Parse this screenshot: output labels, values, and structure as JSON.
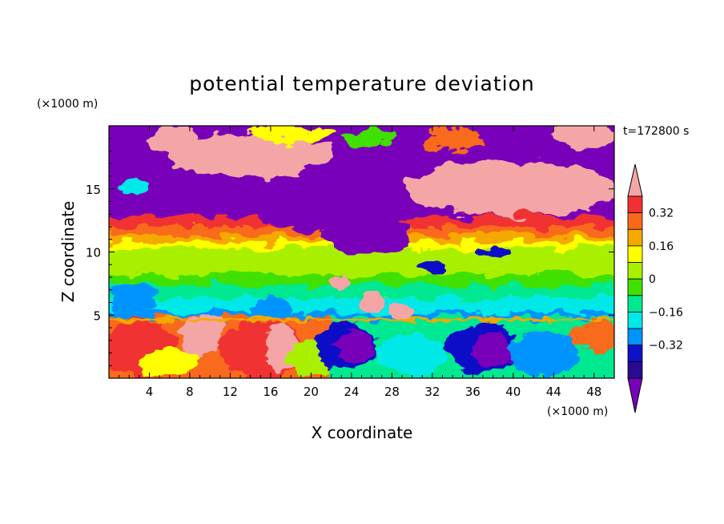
{
  "chart_data": {
    "type": "heatmap",
    "title": "potential temperature deviation",
    "xlabel": "X coordinate",
    "ylabel": "Z coordinate",
    "x_unit": "(×1000 m)",
    "y_unit": "(×1000 m)",
    "time_label": "t=172800 s",
    "xlim": [
      0,
      50
    ],
    "ylim": [
      0,
      20
    ],
    "x_ticks": [
      4,
      8,
      12,
      16,
      20,
      24,
      28,
      32,
      36,
      40,
      44,
      48
    ],
    "y_ticks": [
      5,
      10,
      15
    ],
    "colorbar": {
      "levels": [
        -0.4,
        -0.32,
        -0.24,
        -0.16,
        -0.08,
        0,
        0.08,
        0.16,
        0.24,
        0.32,
        0.4
      ],
      "labeled_ticks": [
        "0.32",
        "0.16",
        "0",
        "-0.16",
        "-0.32"
      ],
      "colors_high_to_low": [
        "#f4a6a6",
        "#f03030",
        "#f86a1a",
        "#f5a800",
        "#ffff00",
        "#a8f000",
        "#40e000",
        "#00e890",
        "#00e8e8",
        "#0094ff",
        "#1010c8",
        "#2a0a90",
        "#7800b8"
      ]
    },
    "bands": [
      {
        "z": [
          19,
          20
        ],
        "value": "mixed, pink and purple patches"
      },
      {
        "z": [
          16,
          19
        ],
        "value": ">0.4 (pink) at x 6-20, <-0.4 (purple) elsewhere"
      },
      {
        "z": [
          13,
          16
        ],
        "value": "<-0.4 (purple) at x 6-30, >0.4 (pink) at x 29-50"
      },
      {
        "z": [
          12,
          13
        ],
        "value": "0.32 to 0.4"
      },
      {
        "z": [
          11,
          12
        ],
        "value": "0.16 to 0.32"
      },
      {
        "z": [
          10,
          11
        ],
        "value": "0.08 to 0.16"
      },
      {
        "z": [
          7,
          10
        ],
        "value": "0 to 0.08"
      },
      {
        "z": [
          5,
          7
        ],
        "value": "-0.16 to 0"
      },
      {
        "z": [
          0,
          5
        ],
        "value": "mixed: positive at x 0-22, negative at x 22-50"
      }
    ]
  }
}
